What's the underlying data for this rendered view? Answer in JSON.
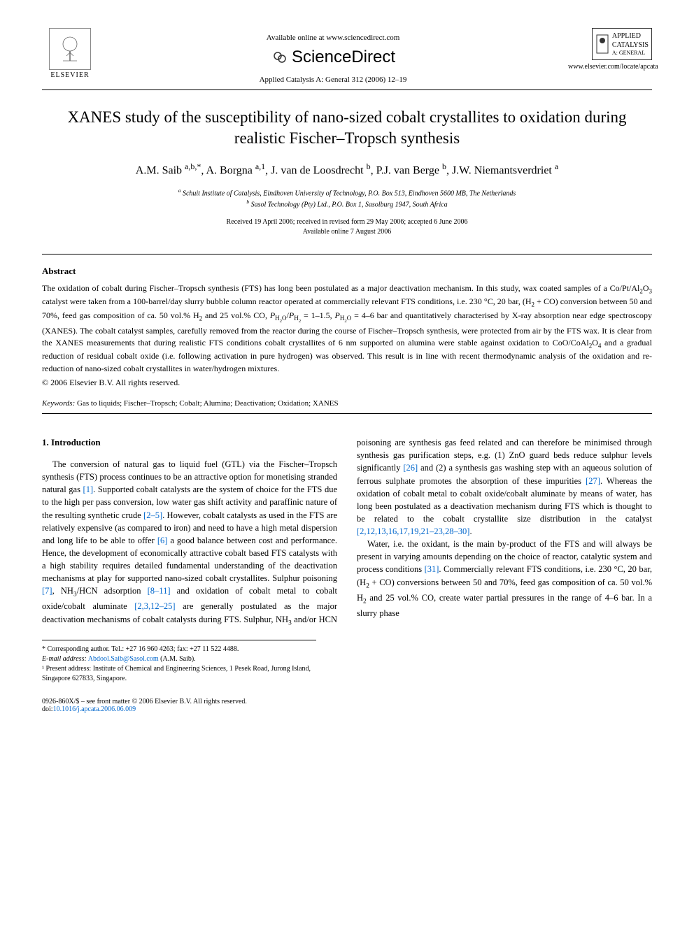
{
  "header": {
    "available_online": "Available online at www.sciencedirect.com",
    "sciencedirect": "ScienceDirect",
    "journal_ref": "Applied Catalysis A: General 312 (2006) 12–19",
    "elsevier": "ELSEVIER",
    "journal_name_line1": "APPLIED",
    "journal_name_line2": "CATALYSIS",
    "journal_name_line3": "A: GENERAL",
    "journal_url": "www.elsevier.com/locate/apcata"
  },
  "title": "XANES study of the susceptibility of nano-sized cobalt crystallites to oxidation during realistic Fischer–Tropsch synthesis",
  "authors_html": "A.M. Saib <sup>a,b,*</sup>, A. Borgna <sup>a,1</sup>, J. van de Loosdrecht <sup>b</sup>, P.J. van Berge <sup>b</sup>, J.W. Niemantsverdriet <sup>a</sup>",
  "affiliations": {
    "a": "Schuit Institute of Catalysis, Eindhoven University of Technology, P.O. Box 513, Eindhoven 5600 MB, The Netherlands",
    "b": "Sasol Technology (Pty) Ltd., P.O. Box 1, Sasolburg 1947, South Africa"
  },
  "dates": {
    "received": "Received 19 April 2006; received in revised form 29 May 2006; accepted 6 June 2006",
    "online": "Available online 7 August 2006"
  },
  "abstract": {
    "heading": "Abstract",
    "text_html": "The oxidation of cobalt during Fischer–Tropsch synthesis (FTS) has long been postulated as a major deactivation mechanism. In this study, wax coated samples of a Co/Pt/Al<sub>2</sub>O<sub>3</sub> catalyst were taken from a 100-barrel/day slurry bubble column reactor operated at commercially relevant FTS conditions, i.e. 230 °C, 20 bar, (H<sub>2</sub> + CO) conversion between 50 and 70%, feed gas composition of ca. 50 vol.% H<sub>2</sub> and 25 vol.% CO, <i>P</i><sub>H<sub>2</sub>O</sub>/<i>P</i><sub>H<sub>2</sub></sub> = 1–1.5, <i>P</i><sub>H<sub>2</sub>O</sub> = 4–6 bar and quantitatively characterised by X-ray absorption near edge spectroscopy (XANES). The cobalt catalyst samples, carefully removed from the reactor during the course of Fischer–Tropsch synthesis, were protected from air by the FTS wax. It is clear from the XANES measurements that during realistic FTS conditions cobalt crystallites of 6 nm supported on alumina were stable against oxidation to CoO/CoAl<sub>2</sub>O<sub>4</sub> and a gradual reduction of residual cobalt oxide (i.e. following activation in pure hydrogen) was observed. This result is in line with recent thermodynamic analysis of the oxidation and re-reduction of nano-sized cobalt crystallites in water/hydrogen mixtures.",
    "copyright": "© 2006 Elsevier B.V. All rights reserved."
  },
  "keywords": {
    "label": "Keywords:",
    "text": "Gas to liquids; Fischer–Tropsch; Cobalt; Alumina; Deactivation; Oxidation; XANES"
  },
  "section1": {
    "heading": "1. Introduction",
    "para1_html": "The conversion of natural gas to liquid fuel (GTL) via the Fischer–Tropsch synthesis (FTS) process continues to be an attractive option for monetising stranded natural gas <a class='cite-link' data-name='citation-link' data-interactable='true'>[1]</a>. Supported cobalt catalysts are the system of choice for the FTS due to the high per pass conversion, low water gas shift activity and paraffinic nature of the resulting synthetic crude <a class='cite-link' data-name='citation-link' data-interactable='true'>[2–5]</a>. However, cobalt catalysts as used in the FTS are relatively expensive (as compared to iron) and need to have a high metal dispersion and long life to be able to offer <a class='cite-link' data-name='citation-link' data-interactable='true'>[6]</a> a good balance between cost and performance. Hence, the development of economically attractive cobalt based FTS catalysts with a high stability requires detailed fundamental understanding of the deactivation mechanisms at play for supported nano-sized cobalt crystallites. Sulphur poisoning <a class='cite-link' data-name='citation-link' data-interactable='true'>[7]</a>, NH<sub>3</sub>/HCN adsorption <a class='cite-link' data-name='citation-link' data-interactable='true'>[8–11]</a> and oxidation of cobalt metal to cobalt oxide/cobalt aluminate <a class='cite-link' data-name='citation-link' data-interactable='true'>[2,3,12–25]</a> are generally postulated as the major deactivation mechanisms of cobalt catalysts during FTS. Sulphur, NH<sub>3</sub> and/or HCN poisoning are synthesis gas feed related and can therefore be minimised through synthesis gas purification steps, e.g. (1) ZnO guard beds reduce sulphur levels significantly <a class='cite-link' data-name='citation-link' data-interactable='true'>[26]</a> and (2) a synthesis gas washing step with an aqueous solution of ferrous sulphate promotes the absorption of these impurities <a class='cite-link' data-name='citation-link' data-interactable='true'>[27]</a>. Whereas the oxidation of cobalt metal to cobalt oxide/cobalt aluminate by means of water, has long been postulated as a deactivation mechanism during FTS which is thought to be related to the cobalt crystallite size distribution in the catalyst <a class='cite-link' data-name='citation-link' data-interactable='true'>[2,12,13,16,17,19,21–23,28–30]</a>.",
    "para2_html": "Water, i.e. the oxidant, is the main by-product of the FTS and will always be present in varying amounts depending on the choice of reactor, catalytic system and process conditions <a class='cite-link' data-name='citation-link' data-interactable='true'>[31]</a>. Commercially relevant FTS conditions, i.e. 230 °C, 20 bar, (H<sub>2</sub> + CO) conversions between 50 and 70%, feed gas composition of ca. 50 vol.% H<sub>2</sub> and 25 vol.% CO, create water partial pressures in the range of 4–6 bar. In a slurry phase"
  },
  "footnotes": {
    "corresponding": "* Corresponding author. Tel.: +27 16 960 4263; fax: +27 11 522 4488.",
    "email_label": "E-mail address:",
    "email": "Abdool.Saib@Sasol.com",
    "email_author": "(A.M. Saib).",
    "present": "¹ Present address: Institute of Chemical and Engineering Sciences, 1 Pesek Road, Jurong Island, Singapore 627833, Singapore."
  },
  "footer": {
    "left": "0926-860X/$ – see front matter © 2006 Elsevier B.V. All rights reserved.",
    "doi_label": "doi:",
    "doi": "10.1016/j.apcata.2006.06.009"
  },
  "colors": {
    "link": "#0066cc",
    "text": "#000000",
    "bg": "#ffffff"
  }
}
